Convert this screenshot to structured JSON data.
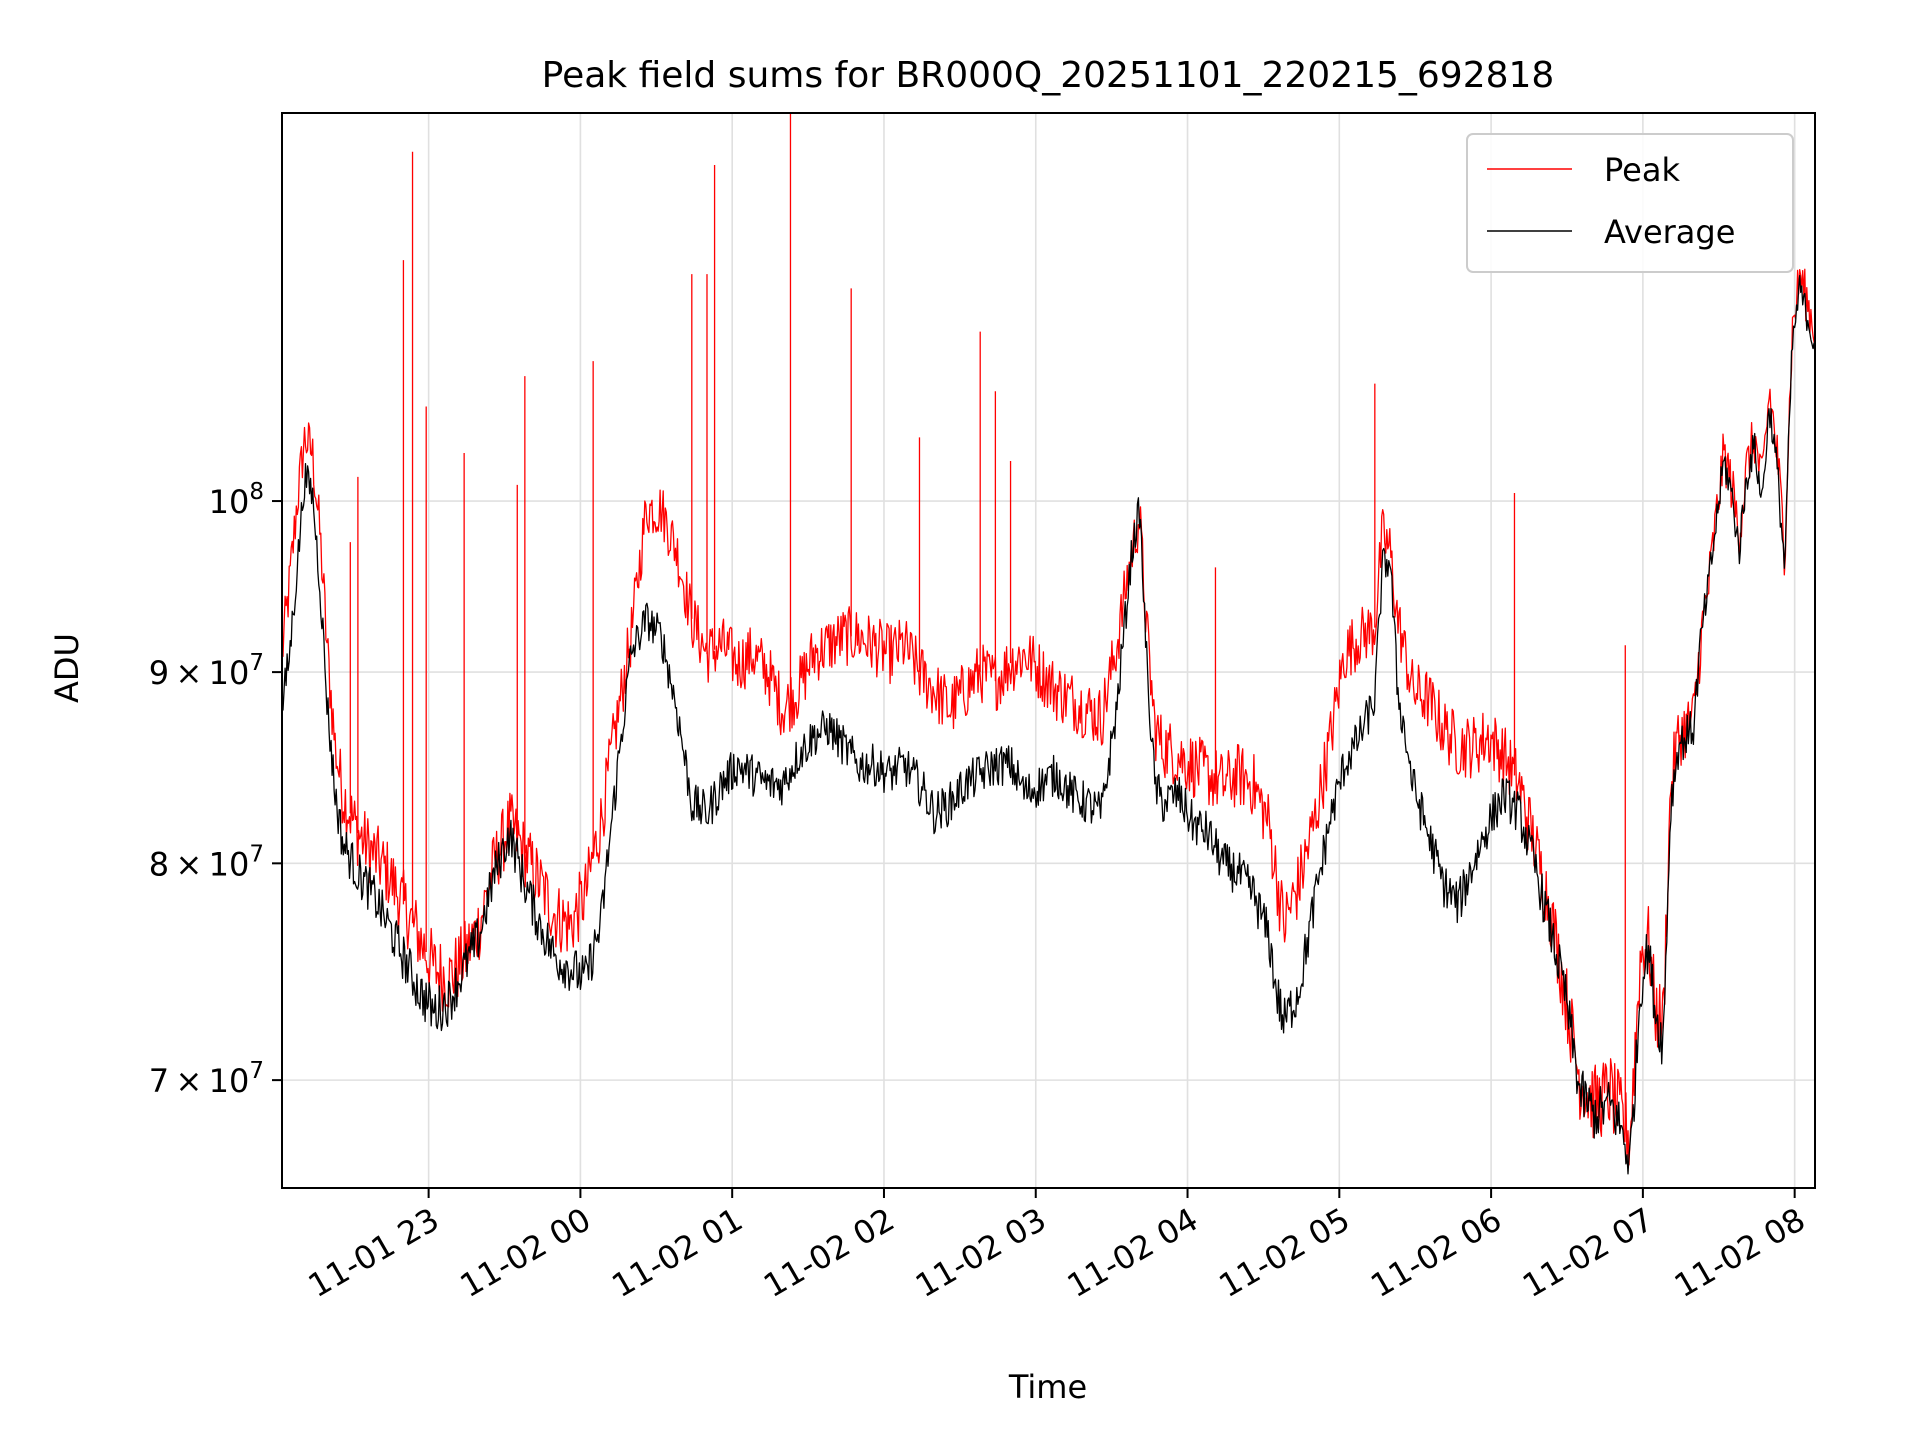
{
  "chart_data": {
    "type": "line",
    "title": "Peak field sums for BR000Q_20251101_220215_692818",
    "xlabel": "Time",
    "ylabel": "ADU",
    "yscale": "log",
    "grid": true,
    "legend_position": "top-right",
    "x_unit": "hours since 11-01 22:02",
    "xlim": [
      0,
      10.1
    ],
    "ylim": [
      65500000,
      127000000
    ],
    "x_ticks": [
      {
        "x": 0.966,
        "label": "11-01 23"
      },
      {
        "x": 1.966,
        "label": "11-02 00"
      },
      {
        "x": 2.966,
        "label": "11-02 01"
      },
      {
        "x": 3.966,
        "label": "11-02 02"
      },
      {
        "x": 4.966,
        "label": "11-02 03"
      },
      {
        "x": 5.966,
        "label": "11-02 04"
      },
      {
        "x": 6.966,
        "label": "11-02 05"
      },
      {
        "x": 7.966,
        "label": "11-02 06"
      },
      {
        "x": 8.966,
        "label": "11-02 07"
      },
      {
        "x": 9.966,
        "label": "11-02 08"
      }
    ],
    "y_ticks": [
      {
        "value": 70000000,
        "mantissa": "7",
        "exp": "7"
      },
      {
        "value": 80000000,
        "mantissa": "8",
        "exp": "7"
      },
      {
        "value": 90000000,
        "mantissa": "9",
        "exp": "7"
      },
      {
        "value": 100000000,
        "mantissa": "",
        "exp": "8"
      }
    ],
    "series": [
      {
        "name": "Peak",
        "color": "#ff0000",
        "points": [
          [
            0,
            91.0
          ],
          [
            0.05,
            95.0
          ],
          [
            0.1,
            100.0
          ],
          [
            0.15,
            104.0
          ],
          [
            0.2,
            103.0
          ],
          [
            0.25,
            98.0
          ],
          [
            0.3,
            91.0
          ],
          [
            0.35,
            86.0
          ],
          [
            0.4,
            83.5
          ],
          [
            0.5,
            81.5
          ],
          [
            0.6,
            80.5
          ],
          [
            0.7,
            79.5
          ],
          [
            0.8,
            78.0
          ],
          [
            0.9,
            76.5
          ],
          [
            1.0,
            75.0
          ],
          [
            1.1,
            74.5
          ],
          [
            1.2,
            75.5
          ],
          [
            1.3,
            77.0
          ],
          [
            1.4,
            80.0
          ],
          [
            1.5,
            82.0
          ],
          [
            1.6,
            80.5
          ],
          [
            1.7,
            79.0
          ],
          [
            1.8,
            77.5
          ],
          [
            1.9,
            77.0
          ],
          [
            2.0,
            78.5
          ],
          [
            2.1,
            82.0
          ],
          [
            2.2,
            87.0
          ],
          [
            2.3,
            92.0
          ],
          [
            2.4,
            99.5
          ],
          [
            2.5,
            99.5
          ],
          [
            2.6,
            97.0
          ],
          [
            2.7,
            93.0
          ],
          [
            2.8,
            91.0
          ],
          [
            2.9,
            91.5
          ],
          [
            3.0,
            90.5
          ],
          [
            3.1,
            91.0
          ],
          [
            3.2,
            90.0
          ],
          [
            3.3,
            88.0
          ],
          [
            3.4,
            89.0
          ],
          [
            3.5,
            91.0
          ],
          [
            3.6,
            91.5
          ],
          [
            3.7,
            92.0
          ],
          [
            3.8,
            92.0
          ],
          [
            3.9,
            91.5
          ],
          [
            4.0,
            91.0
          ],
          [
            4.1,
            91.5
          ],
          [
            4.2,
            90.0
          ],
          [
            4.3,
            89.0
          ],
          [
            4.4,
            88.0
          ],
          [
            4.5,
            89.0
          ],
          [
            4.6,
            90.0
          ],
          [
            4.7,
            89.5
          ],
          [
            4.8,
            90.5
          ],
          [
            4.9,
            91.0
          ],
          [
            5.0,
            90.0
          ],
          [
            5.1,
            89.0
          ],
          [
            5.2,
            88.5
          ],
          [
            5.3,
            88.0
          ],
          [
            5.4,
            87.5
          ],
          [
            5.5,
            91.5
          ],
          [
            5.6,
            97.0
          ],
          [
            5.65,
            99.0
          ],
          [
            5.7,
            92.0
          ],
          [
            5.75,
            87.0
          ],
          [
            5.8,
            86.0
          ],
          [
            5.9,
            85.5
          ],
          [
            6.0,
            85.0
          ],
          [
            6.1,
            84.5
          ],
          [
            6.2,
            84.0
          ],
          [
            6.3,
            84.5
          ],
          [
            6.4,
            84.0
          ],
          [
            6.5,
            82.0
          ],
          [
            6.55,
            79.5
          ],
          [
            6.6,
            77.0
          ],
          [
            6.7,
            79.0
          ],
          [
            6.8,
            82.0
          ],
          [
            6.9,
            86.0
          ],
          [
            7.0,
            91.0
          ],
          [
            7.1,
            92.0
          ],
          [
            7.2,
            92.5
          ],
          [
            7.25,
            98.0
          ],
          [
            7.3,
            97.0
          ],
          [
            7.35,
            93.0
          ],
          [
            7.45,
            89.0
          ],
          [
            7.55,
            88.5
          ],
          [
            7.65,
            87.0
          ],
          [
            7.75,
            86.0
          ],
          [
            7.85,
            86.0
          ],
          [
            7.95,
            86.5
          ],
          [
            8.05,
            85.5
          ],
          [
            8.15,
            84.0
          ],
          [
            8.25,
            81.0
          ],
          [
            8.35,
            78.0
          ],
          [
            8.45,
            74.0
          ],
          [
            8.55,
            70.0
          ],
          [
            8.65,
            69.0
          ],
          [
            8.75,
            69.5
          ],
          [
            8.82,
            68.5
          ],
          [
            8.88,
            67.5
          ],
          [
            8.92,
            72.0
          ],
          [
            8.95,
            75.5
          ],
          [
            9.0,
            76.5
          ],
          [
            9.05,
            73.0
          ],
          [
            9.1,
            72.5
          ],
          [
            9.15,
            84.0
          ],
          [
            9.2,
            86.5
          ],
          [
            9.3,
            87.5
          ],
          [
            9.35,
            92.0
          ],
          [
            9.4,
            95.0
          ],
          [
            9.5,
            103.0
          ],
          [
            9.55,
            101.0
          ],
          [
            9.6,
            98.0
          ],
          [
            9.65,
            102.0
          ],
          [
            9.7,
            104.0
          ],
          [
            9.75,
            101.0
          ],
          [
            9.8,
            107.0
          ],
          [
            9.85,
            103.0
          ],
          [
            9.9,
            97.0
          ],
          [
            9.95,
            111.0
          ],
          [
            10.0,
            115.0
          ],
          [
            10.05,
            113.0
          ],
          [
            10.1,
            111.0
          ]
        ],
        "spikes": [
          [
            0.45,
            97.5
          ],
          [
            0.5,
            101.5
          ],
          [
            0.8,
            116.0
          ],
          [
            0.86,
            124.0
          ],
          [
            0.95,
            106.0
          ],
          [
            1.2,
            103.0
          ],
          [
            1.55,
            101.0
          ],
          [
            1.6,
            108.0
          ],
          [
            2.05,
            109.0
          ],
          [
            2.7,
            115.0
          ],
          [
            2.8,
            115.0
          ],
          [
            2.85,
            123.0
          ],
          [
            3.35,
            128.0
          ],
          [
            3.75,
            114.0
          ],
          [
            4.2,
            104.0
          ],
          [
            4.6,
            111.0
          ],
          [
            4.7,
            107.0
          ],
          [
            4.8,
            102.5
          ],
          [
            6.15,
            96.0
          ],
          [
            7.2,
            107.5
          ],
          [
            8.12,
            100.5
          ],
          [
            8.85,
            91.5
          ]
        ]
      },
      {
        "name": "Average",
        "color": "#000000",
        "points": [
          [
            0,
            88.0
          ],
          [
            0.05,
            91.0
          ],
          [
            0.1,
            96.0
          ],
          [
            0.15,
            101.5
          ],
          [
            0.2,
            100.5
          ],
          [
            0.25,
            95.0
          ],
          [
            0.3,
            88.0
          ],
          [
            0.35,
            83.5
          ],
          [
            0.4,
            81.0
          ],
          [
            0.5,
            79.5
          ],
          [
            0.6,
            78.5
          ],
          [
            0.7,
            77.0
          ],
          [
            0.8,
            75.5
          ],
          [
            0.9,
            74.0
          ],
          [
            1.0,
            73.0
          ],
          [
            1.1,
            73.5
          ],
          [
            1.2,
            75.0
          ],
          [
            1.3,
            76.5
          ],
          [
            1.4,
            79.5
          ],
          [
            1.5,
            81.5
          ],
          [
            1.6,
            79.0
          ],
          [
            1.7,
            77.0
          ],
          [
            1.8,
            75.5
          ],
          [
            1.9,
            75.0
          ],
          [
            2.0,
            74.5
          ],
          [
            2.1,
            77.0
          ],
          [
            2.2,
            84.0
          ],
          [
            2.3,
            91.0
          ],
          [
            2.4,
            93.0
          ],
          [
            2.5,
            92.0
          ],
          [
            2.6,
            88.0
          ],
          [
            2.7,
            83.0
          ],
          [
            2.8,
            82.5
          ],
          [
            2.9,
            84.0
          ],
          [
            3.0,
            85.0
          ],
          [
            3.1,
            84.5
          ],
          [
            3.2,
            84.0
          ],
          [
            3.3,
            84.0
          ],
          [
            3.4,
            85.5
          ],
          [
            3.5,
            86.5
          ],
          [
            3.6,
            87.0
          ],
          [
            3.7,
            86.0
          ],
          [
            3.8,
            85.0
          ],
          [
            3.9,
            85.0
          ],
          [
            4.0,
            84.5
          ],
          [
            4.1,
            85.0
          ],
          [
            4.2,
            84.0
          ],
          [
            4.3,
            82.5
          ],
          [
            4.4,
            83.0
          ],
          [
            4.5,
            84.0
          ],
          [
            4.6,
            84.5
          ],
          [
            4.7,
            85.0
          ],
          [
            4.8,
            85.0
          ],
          [
            4.9,
            83.5
          ],
          [
            5.0,
            84.0
          ],
          [
            5.1,
            84.5
          ],
          [
            5.2,
            83.5
          ],
          [
            5.3,
            83.0
          ],
          [
            5.4,
            82.5
          ],
          [
            5.5,
            88.0
          ],
          [
            5.6,
            97.0
          ],
          [
            5.65,
            99.5
          ],
          [
            5.7,
            90.0
          ],
          [
            5.75,
            84.0
          ],
          [
            5.8,
            83.0
          ],
          [
            5.9,
            83.5
          ],
          [
            6.0,
            82.0
          ],
          [
            6.1,
            81.5
          ],
          [
            6.2,
            80.0
          ],
          [
            6.3,
            79.5
          ],
          [
            6.4,
            78.5
          ],
          [
            6.5,
            76.5
          ],
          [
            6.55,
            74.0
          ],
          [
            6.6,
            72.5
          ],
          [
            6.7,
            74.0
          ],
          [
            6.8,
            78.0
          ],
          [
            6.9,
            82.0
          ],
          [
            7.0,
            85.0
          ],
          [
            7.1,
            86.5
          ],
          [
            7.2,
            88.5
          ],
          [
            7.25,
            96.0
          ],
          [
            7.3,
            96.5
          ],
          [
            7.35,
            89.0
          ],
          [
            7.45,
            84.0
          ],
          [
            7.55,
            81.5
          ],
          [
            7.65,
            79.0
          ],
          [
            7.75,
            78.0
          ],
          [
            7.85,
            80.0
          ],
          [
            7.95,
            82.0
          ],
          [
            8.05,
            83.5
          ],
          [
            8.15,
            82.5
          ],
          [
            8.25,
            80.0
          ],
          [
            8.35,
            77.0
          ],
          [
            8.45,
            74.0
          ],
          [
            8.55,
            69.5
          ],
          [
            8.65,
            68.5
          ],
          [
            8.75,
            69.0
          ],
          [
            8.82,
            68.0
          ],
          [
            8.88,
            66.5
          ],
          [
            8.92,
            70.5
          ],
          [
            8.95,
            74.0
          ],
          [
            9.0,
            76.0
          ],
          [
            9.05,
            73.0
          ],
          [
            9.1,
            71.5
          ],
          [
            9.15,
            83.0
          ],
          [
            9.2,
            86.0
          ],
          [
            9.3,
            87.0
          ],
          [
            9.35,
            92.0
          ],
          [
            9.4,
            95.0
          ],
          [
            9.5,
            102.5
          ],
          [
            9.55,
            100.5
          ],
          [
            9.6,
            97.0
          ],
          [
            9.65,
            101.5
          ],
          [
            9.7,
            103.5
          ],
          [
            9.75,
            100.0
          ],
          [
            9.8,
            106.0
          ],
          [
            9.85,
            102.0
          ],
          [
            9.9,
            96.0
          ],
          [
            9.95,
            110.0
          ],
          [
            10.0,
            114.0
          ],
          [
            10.05,
            112.0
          ],
          [
            10.1,
            110.0
          ]
        ]
      }
    ]
  }
}
